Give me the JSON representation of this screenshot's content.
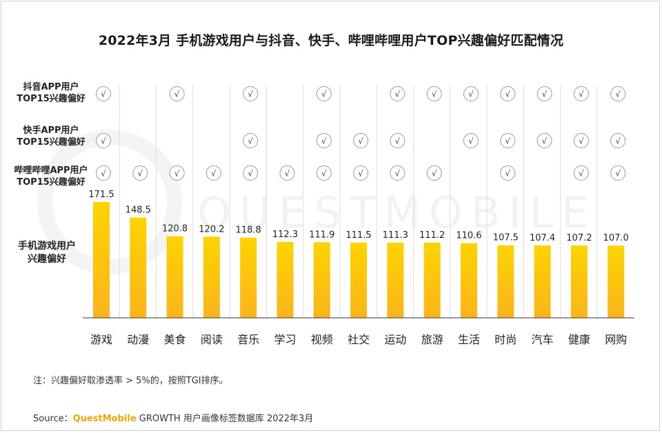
{
  "title": "2022年3月 手机游戏用户与抖音、快手、哔哩哔哩用户TOP兴趣偏好匹配情况",
  "rows": [
    {
      "line1": "抖音APP用户",
      "line2": "TOP15兴趣偏好"
    },
    {
      "line1": "快手APP用户",
      "line2": "TOP15兴趣偏好"
    },
    {
      "line1": "哔哩哔哩APP用户",
      "line2": "TOP15兴趣偏好"
    }
  ],
  "metric_label": {
    "line1": "手机游戏用户",
    "line2": "兴趣偏好"
  },
  "check_symbol": "√",
  "watermark": "QUESTMOBILE",
  "note": "注：兴趣偏好取渗透率 > 5%的，按照TGI排序。",
  "source": {
    "prefix": "Source：",
    "brand": "QuestMobile",
    "rest": " GROWTH 用户画像标签数据库 2022年3月"
  },
  "colors": {
    "bar_top": "#ffd400",
    "bar_bottom": "#fbb41b",
    "check_border": "#9a9a9a",
    "separator": "#dddddd"
  },
  "chart_data": {
    "type": "bar",
    "title": "2022年3月 手机游戏用户与抖音、快手、哔哩哔哩用户TOP兴趣偏好匹配情况",
    "categories": [
      "游戏",
      "动漫",
      "美食",
      "阅读",
      "音乐",
      "学习",
      "视频",
      "社交",
      "运动",
      "旅游",
      "生活",
      "时尚",
      "汽车",
      "健康",
      "网购"
    ],
    "series": [
      {
        "name": "手机游戏用户兴趣偏好",
        "values": [
          171.5,
          148.5,
          120.8,
          120.2,
          118.8,
          112.3,
          111.9,
          111.5,
          111.3,
          111.2,
          110.6,
          107.5,
          107.4,
          107.2,
          107.0
        ]
      }
    ],
    "value_labels": [
      "171.5",
      "148.5",
      "120.8",
      "120.2",
      "118.8",
      "112.3",
      "111.9",
      "111.5",
      "111.3",
      "111.2",
      "110.6",
      "107.5",
      "107.4",
      "107.2",
      "107.0"
    ],
    "matches": {
      "douyin": [
        true,
        false,
        true,
        false,
        true,
        false,
        true,
        false,
        true,
        true,
        true,
        true,
        true,
        true,
        true
      ],
      "kuaishou": [
        true,
        false,
        false,
        false,
        true,
        false,
        true,
        true,
        true,
        false,
        true,
        true,
        true,
        true,
        true
      ],
      "bilibili": [
        true,
        true,
        true,
        true,
        true,
        true,
        true,
        true,
        true,
        true,
        false,
        true,
        false,
        true,
        true
      ]
    },
    "ylim": [
      0,
      171.5
    ],
    "legend": "none",
    "grid": false
  }
}
